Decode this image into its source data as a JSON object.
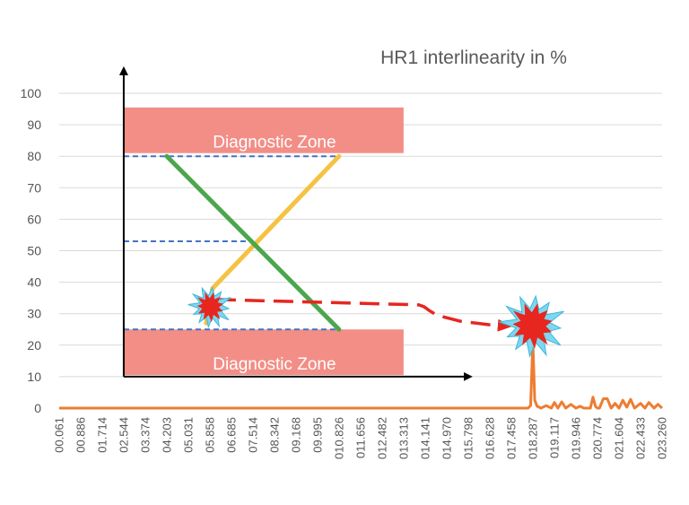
{
  "chart_data": {
    "type": "line",
    "title": "HR1 interlinearity in %",
    "ylim": [
      0,
      100
    ],
    "yticks": [
      "0",
      "10",
      "20",
      "30",
      "40",
      "50",
      "60",
      "70",
      "80",
      "90",
      "100"
    ],
    "categories": [
      "00.061",
      "00.886",
      "01.714",
      "02.544",
      "03.374",
      "04.203",
      "05.031",
      "05.858",
      "06.685",
      "07.514",
      "08.342",
      "09.168",
      "09.995",
      "010.826",
      "011.656",
      "012.482",
      "013.313",
      "014.141",
      "014.970",
      "015.798",
      "016.628",
      "017.458",
      "018.287",
      "019.117",
      "019.946",
      "020.774",
      "021.604",
      "022.433",
      "023.260"
    ],
    "series": [
      {
        "name": "HR1 interlinearity",
        "color": "#ed7d31",
        "x": [
          0.061,
          5.0,
          10.0,
          15.0,
          17.9,
          18.1,
          18.2,
          18.287,
          18.36,
          18.45,
          18.6,
          18.8,
          19.0,
          19.117,
          19.25,
          19.4,
          19.55,
          19.75,
          19.946,
          20.1,
          20.25,
          20.5,
          20.6,
          20.7,
          20.774,
          20.85,
          21.0,
          21.15,
          21.3,
          21.45,
          21.604,
          21.75,
          21.9,
          22.05,
          22.2,
          22.433,
          22.6,
          22.75,
          22.95,
          23.1,
          23.26
        ],
        "values": [
          0,
          0,
          0,
          0,
          0,
          0,
          0.8,
          21,
          2.5,
          0.6,
          0,
          0.8,
          0,
          1.8,
          0,
          2,
          0,
          1.2,
          0,
          0.6,
          0,
          0,
          3.5,
          0.5,
          0,
          0,
          3,
          3,
          0,
          1.5,
          0,
          2.5,
          0.3,
          2.8,
          0,
          1.5,
          0,
          1.8,
          0,
          1.2,
          0
        ]
      }
    ],
    "annotations": {
      "zones": [
        {
          "label": "Diagnostic Zone",
          "y_from": 81,
          "y_to": 95.5,
          "x_from": 2.544,
          "x_to": 13.313,
          "color": "#f28e86"
        },
        {
          "label": "Diagnostic Zone",
          "y_from": 10.5,
          "y_to": 25,
          "x_from": 2.544,
          "x_to": 13.313,
          "color": "#f28e86"
        }
      ],
      "dashed_levels": [
        {
          "y": 80,
          "x_from": 2.544,
          "x_to": 10.826,
          "color": "#4472c4"
        },
        {
          "y": 53,
          "x_from": 2.544,
          "x_to": 7.514,
          "color": "#4472c4"
        },
        {
          "y": 25,
          "x_from": 2.544,
          "x_to": 10.826,
          "color": "#4472c4"
        }
      ],
      "lines": [
        {
          "name": "rising",
          "color": "#f5c242",
          "x": [
            5.72,
            5.96,
            10.826
          ],
          "y": [
            27,
            38,
            80
          ]
        },
        {
          "name": "falling",
          "color": "#4ca64c",
          "x": [
            4.203,
            10.826
          ],
          "y": [
            80,
            25
          ]
        }
      ],
      "trend_arrow": {
        "color": "#e6261f",
        "x": [
          6.1,
          13.9,
          14.1,
          14.3,
          14.6,
          15.5,
          16.6,
          17.35
        ],
        "y": [
          34.5,
          32.8,
          32.2,
          31.0,
          29.5,
          27.6,
          26.5,
          26.0
        ]
      },
      "axes_arrows": {
        "origin_x": 2.544,
        "origin_y": 10,
        "x_end": 15.9,
        "y_end": 108
      },
      "bursts": [
        {
          "x": 5.88,
          "y": 32.2,
          "size": 25
        },
        {
          "x": 18.287,
          "y": 26.3,
          "size": 38
        }
      ]
    }
  }
}
